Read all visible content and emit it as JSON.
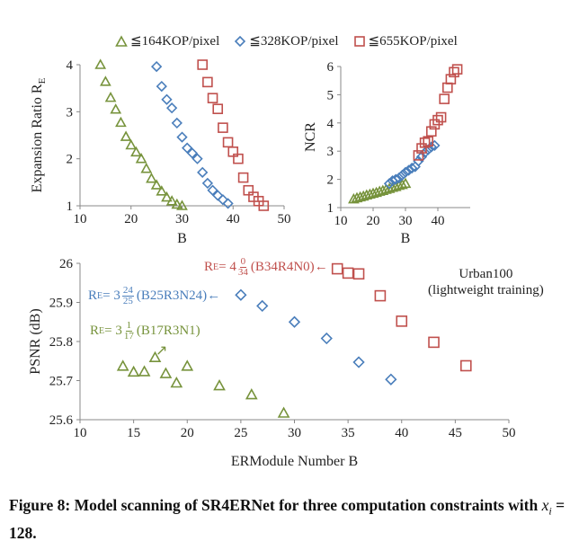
{
  "legend": [
    {
      "label": "≦164KOP/pixel",
      "marker": "triangle",
      "color": "#77933c"
    },
    {
      "label": "≦328KOP/pixel",
      "marker": "diamond",
      "color": "#4a7ebb"
    },
    {
      "label": "≦655KOP/pixel",
      "marker": "square",
      "color": "#c0504d"
    }
  ],
  "chart_data": [
    {
      "type": "scatter",
      "ylabel": "Expansion Ratio R",
      "ylabel_sub": "E",
      "xlabel": "B",
      "xlim": [
        10,
        50
      ],
      "ylim": [
        1,
        4
      ],
      "xticks": [
        10,
        20,
        30,
        40,
        50
      ],
      "yticks": [
        1,
        2,
        3,
        4
      ],
      "series": [
        {
          "name": "≦164KOP/pixel",
          "x": [
            14,
            15,
            16,
            17,
            18,
            19,
            20,
            21,
            22,
            23,
            24,
            25,
            26,
            27,
            28,
            29,
            30
          ],
          "y": [
            4,
            3.64,
            3.3,
            3.05,
            2.77,
            2.47,
            2.29,
            2.14,
            2.0,
            1.79,
            1.58,
            1.44,
            1.31,
            1.18,
            1.1,
            1.03,
            1.0
          ]
        },
        {
          "name": "≦328KOP/pixel",
          "x": [
            25,
            26,
            27,
            28,
            29,
            30,
            31,
            32,
            33,
            34,
            35,
            36,
            37,
            38,
            39
          ],
          "y": [
            3.96,
            3.54,
            3.26,
            3.08,
            2.76,
            2.46,
            2.23,
            2.12,
            2.0,
            1.71,
            1.48,
            1.33,
            1.22,
            1.13,
            1.05
          ]
        },
        {
          "name": "≦655KOP/pixel",
          "x": [
            34,
            35,
            36,
            37,
            38,
            39,
            40,
            41,
            42,
            43,
            44,
            45,
            46
          ],
          "y": [
            4,
            3.63,
            3.29,
            3.06,
            2.66,
            2.35,
            2.15,
            2.0,
            1.6,
            1.33,
            1.19,
            1.1,
            1.0
          ]
        }
      ]
    },
    {
      "type": "scatter",
      "ylabel": "NCR",
      "xlabel": "B",
      "xlim": [
        10,
        50
      ],
      "ylim": [
        1,
        6
      ],
      "xticks": [
        10,
        20,
        30,
        40
      ],
      "yticks": [
        1,
        2,
        3,
        4,
        5,
        6
      ],
      "series": [
        {
          "name": "≦164KOP/pixel",
          "x": [
            14,
            15,
            16,
            17,
            18,
            19,
            20,
            21,
            22,
            23,
            24,
            25,
            26,
            27,
            28,
            29,
            30
          ],
          "y": [
            1.3,
            1.34,
            1.37,
            1.4,
            1.44,
            1.47,
            1.5,
            1.53,
            1.57,
            1.6,
            1.64,
            1.67,
            1.71,
            1.74,
            1.78,
            1.81,
            1.85
          ]
        },
        {
          "name": "≦328KOP/pixel",
          "x": [
            25,
            26,
            27,
            28,
            29,
            30,
            31,
            32,
            33,
            34,
            35,
            36,
            37,
            38,
            39
          ],
          "y": [
            1.85,
            1.95,
            2.0,
            2.05,
            2.15,
            2.25,
            2.32,
            2.4,
            2.45,
            2.65,
            2.8,
            2.95,
            3.05,
            3.15,
            3.2
          ]
        },
        {
          "name": "≦655KOP/pixel",
          "x": [
            34,
            35,
            36,
            37,
            38,
            39,
            40,
            41,
            42,
            43,
            44,
            45,
            46
          ],
          "y": [
            2.85,
            3.1,
            3.3,
            3.35,
            3.7,
            3.95,
            4.1,
            4.2,
            4.85,
            5.25,
            5.55,
            5.8,
            5.9
          ]
        }
      ]
    },
    {
      "type": "scatter",
      "ylabel": "PSNR (dB)",
      "xlabel": "ERModule Number B",
      "xlim": [
        10,
        50
      ],
      "ylim": [
        25.6,
        26
      ],
      "xticks": [
        10,
        15,
        20,
        25,
        30,
        35,
        40,
        45,
        50
      ],
      "yticks": [
        25.6,
        25.7,
        25.8,
        25.9,
        26
      ],
      "series": [
        {
          "name": "≦164KOP/pixel",
          "x": [
            14,
            15,
            16,
            17,
            18,
            19,
            20,
            23,
            26,
            29
          ],
          "y": [
            25.737,
            25.722,
            25.723,
            25.759,
            25.718,
            25.694,
            25.737,
            25.687,
            25.664,
            25.617
          ]
        },
        {
          "name": "≦328KOP/pixel",
          "x": [
            25,
            27,
            30,
            33,
            36,
            39
          ],
          "y": [
            25.919,
            25.891,
            25.85,
            25.808,
            25.747,
            25.703
          ]
        },
        {
          "name": "≦655KOP/pixel",
          "x": [
            34,
            35,
            36,
            38,
            40,
            43,
            46
          ],
          "y": [
            25.986,
            25.975,
            25.973,
            25.917,
            25.852,
            25.798,
            25.738
          ]
        }
      ],
      "annotations": [
        {
          "prefix": "R",
          "sub": "E",
          "eq": " = 4",
          "num": "0",
          "den": "34",
          "suffix": "(B34R4N0)",
          "arrow": "←",
          "color": "#c0504d"
        },
        {
          "prefix": "R",
          "sub": "E",
          "eq": " = 3",
          "num": "24",
          "den": "25",
          "suffix": "(B25R3N24)",
          "arrow": "←",
          "color": "#4a7ebb"
        },
        {
          "prefix": "R",
          "sub": "E",
          "eq": " = 3",
          "num": "1",
          "den": "17",
          "suffix": "(B17R3N1)",
          "arrow": "↗",
          "color": "#77933c"
        }
      ],
      "dataset_note": [
        "Urban100",
        "(lightweight training)"
      ]
    }
  ],
  "caption": {
    "text": "Figure 8: Model scanning of SR4ERNet for three computation constraints with ",
    "math": "x",
    "math_sub": "i",
    "tail": " = 128."
  }
}
